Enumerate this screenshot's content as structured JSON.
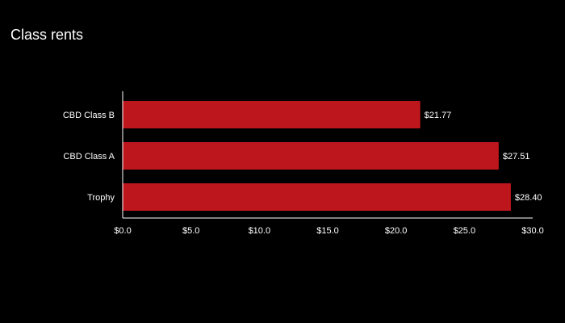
{
  "chart_data": {
    "type": "bar",
    "orientation": "horizontal",
    "title": "Class rents",
    "xlabel": "",
    "ylabel": "",
    "categories": [
      "CBD Class B",
      "CBD Class A",
      "Trophy"
    ],
    "values": [
      21.77,
      27.51,
      28.4
    ],
    "value_labels": [
      "$21.77",
      "$27.51",
      "$28.40"
    ],
    "xlim": [
      0,
      30
    ],
    "x_ticks": [
      0,
      5,
      10,
      15,
      20,
      25,
      30
    ],
    "x_tick_labels": [
      "$0.0",
      "$5.0",
      "$10.0",
      "$15.0",
      "$20.0",
      "$25.0",
      "$30.0"
    ],
    "grid": false,
    "legend": "none",
    "colors": {
      "bar": "#be161d",
      "background": "#000000",
      "text": "#ffffff",
      "axis": "#ffffff"
    }
  }
}
